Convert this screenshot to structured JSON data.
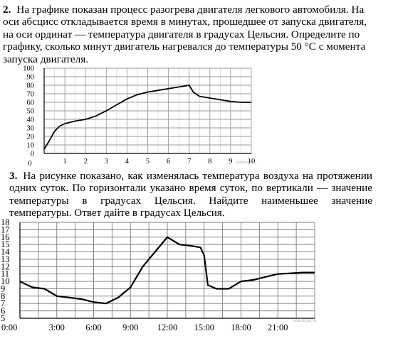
{
  "problem2": {
    "number": "2.",
    "text": "На графике показан процесс разогрева двигателя легкового автомобиля. На оси абсцисс откладывается время в минутах, прошедшее от запуска двигателя, на оси ординат — температура двигателя в градусах Цельсия. Определите по графику, сколько минут двигатель нагревался до температуры 50 °С с момента запуска двигателя."
  },
  "problem3": {
    "number": "3.",
    "text": "На рисунке показано, как изменялась температура воздуха на протяжении одних суток. По горизонтали указано время суток, по вертикали — значение температуры в градусах Цельсия. Найдите наименьшее значение температуры. Ответ дайте в градусах Цельсия."
  },
  "watermark_1": "reshuege.ru",
  "watermark_2": "reshuege.ru",
  "chart_data": [
    {
      "type": "line",
      "title": "",
      "xlabel": "",
      "ylabel": "",
      "x_ticks": [
        0,
        1,
        2,
        3,
        4,
        5,
        6,
        7,
        8,
        9,
        10
      ],
      "y_ticks": [
        0,
        10,
        20,
        30,
        40,
        50,
        60,
        70,
        80,
        90,
        100
      ],
      "xlim": [
        0,
        10
      ],
      "ylim": [
        0,
        100
      ],
      "grid": true,
      "series": [
        {
          "x": [
            0,
            0.25,
            0.5,
            0.75,
            1,
            1.5,
            2,
            2.5,
            3,
            3.5,
            4,
            4.5,
            5,
            5.5,
            6,
            6.5,
            7,
            7.2,
            7.5,
            8,
            8.5,
            9,
            9.5,
            10
          ],
          "y": [
            5,
            15,
            26,
            32,
            35,
            38,
            40,
            44,
            50,
            57,
            64,
            69,
            72,
            74,
            76,
            78,
            80,
            72,
            67,
            65,
            63,
            61,
            60,
            60
          ]
        }
      ]
    },
    {
      "type": "line",
      "title": "",
      "xlabel": "",
      "ylabel": "",
      "categories": [
        "0:00",
        "3:00",
        "6:00",
        "9:00",
        "12:00",
        "15:00",
        "18:00",
        "21:00"
      ],
      "y_ticks": [
        5,
        6,
        7,
        8,
        9,
        10,
        11,
        12,
        13,
        14,
        15,
        16,
        17,
        18
      ],
      "xlim": [
        0,
        24
      ],
      "ylim": [
        5,
        18
      ],
      "grid": true,
      "series": [
        {
          "x": [
            0,
            1,
            2,
            3,
            4,
            5,
            6,
            7,
            8,
            9,
            10,
            11,
            12,
            13,
            14,
            14.7,
            15,
            15.3,
            16,
            17,
            18,
            19,
            20,
            21,
            22,
            23,
            24
          ],
          "y": [
            10,
            9.2,
            9,
            8,
            7.8,
            7.6,
            7.2,
            7,
            7.8,
            9.2,
            12,
            14,
            16,
            15,
            14.8,
            14.6,
            13.5,
            9.5,
            9,
            9,
            10,
            10.2,
            10.6,
            11,
            11.1,
            11.2,
            11.2
          ]
        }
      ]
    }
  ]
}
